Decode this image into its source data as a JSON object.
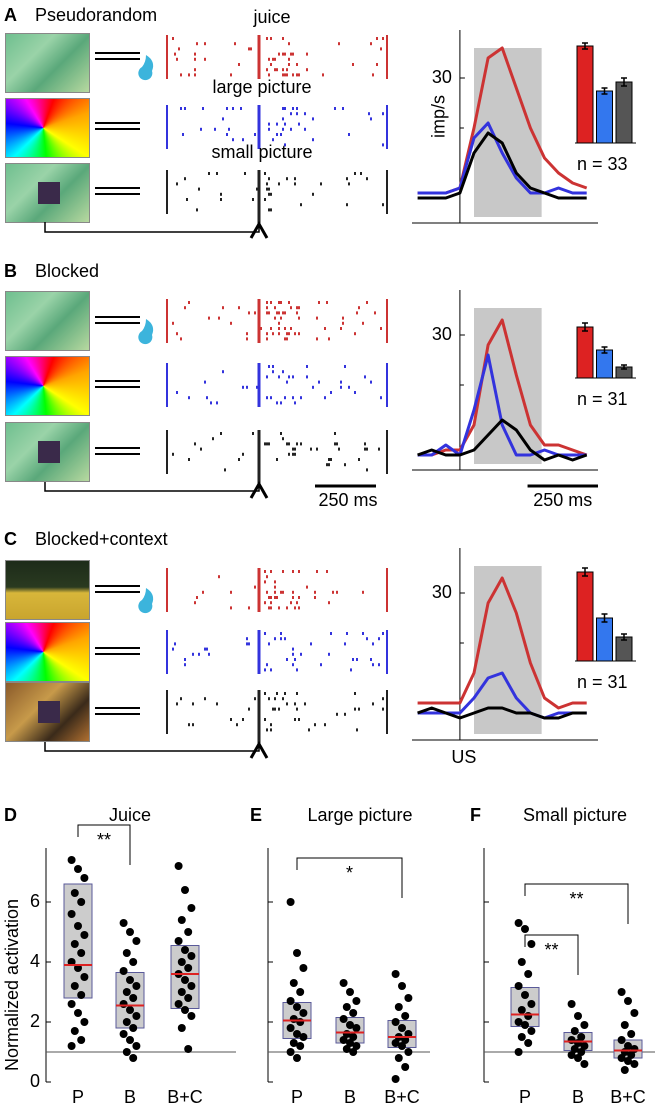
{
  "panels": [
    {
      "label": "A",
      "title": "Pseudorandom"
    },
    {
      "label": "B",
      "title": "Blocked"
    },
    {
      "label": "C",
      "title": "Blocked+context"
    }
  ],
  "raster_labels": [
    "juice",
    "large picture",
    "small picture"
  ],
  "raster_scale_bar": "250 ms",
  "chart_data": [
    {
      "type": "line",
      "x": [
        -150,
        -100,
        -50,
        0,
        50,
        100,
        150,
        200,
        250,
        300,
        350,
        400,
        450
      ],
      "xlim": [
        -170,
        490
      ],
      "ylim": [
        1,
        39.6
      ],
      "yticks": [
        30
      ],
      "minor_yticks": [
        20
      ],
      "ylabel": "imp/s",
      "shade": [
        50,
        290
      ],
      "series": [
        {
          "color": "#cc3333",
          "values": [
            7,
            7,
            7,
            8,
            20,
            34,
            36,
            28,
            20,
            14,
            11,
            9,
            8
          ]
        },
        {
          "color": "#3333dd",
          "values": [
            7,
            7,
            7,
            8,
            18,
            21,
            15,
            10,
            7,
            7,
            8,
            7,
            7
          ]
        },
        {
          "color": "#000000",
          "values": [
            6,
            6,
            6,
            7,
            15,
            19,
            17,
            11,
            8,
            7,
            6,
            6,
            6
          ]
        }
      ],
      "bars": {
        "values": [
          9.7,
          5.2,
          6.1
        ],
        "errors": [
          0.3,
          0.3,
          0.4
        ],
        "colors": [
          "#dd2222",
          "#3377ee",
          "#555555"
        ],
        "ylim": [
          0,
          10
        ]
      },
      "n_label": "n = 33"
    },
    {
      "type": "line",
      "x": [
        -150,
        -100,
        -50,
        0,
        50,
        100,
        150,
        200,
        250,
        300,
        350,
        400,
        450
      ],
      "xlim": [
        -170,
        490
      ],
      "ylim": [
        3,
        39
      ],
      "yticks": [
        30
      ],
      "minor_yticks": [
        20
      ],
      "shade": [
        50,
        290
      ],
      "scale_bar": {
        "label": "250 ms",
        "length": 250
      },
      "series": [
        {
          "color": "#cc3333",
          "values": [
            6,
            6,
            7,
            7,
            12,
            28,
            33,
            22,
            12,
            8,
            8,
            7,
            6
          ]
        },
        {
          "color": "#3333dd",
          "values": [
            6,
            6,
            8,
            6,
            15,
            26,
            12,
            6,
            6,
            7,
            6,
            6,
            6
          ]
        },
        {
          "color": "#000000",
          "values": [
            6,
            7,
            6,
            6,
            7,
            10,
            13,
            11,
            7,
            5,
            6,
            5,
            6
          ]
        }
      ],
      "bars": {
        "values": [
          5.1,
          2.8,
          1.1
        ],
        "errors": [
          0.4,
          0.3,
          0.2
        ],
        "colors": [
          "#dd2222",
          "#3377ee",
          "#555555"
        ],
        "ylim": [
          0,
          10
        ]
      },
      "n_label": "n = 31"
    },
    {
      "type": "line",
      "x": [
        -150,
        -100,
        -50,
        0,
        50,
        100,
        150,
        200,
        250,
        300,
        350,
        400,
        450
      ],
      "xlim": [
        -170,
        490
      ],
      "ylim": [
        0.6,
        39
      ],
      "yticks": [
        30
      ],
      "minor_yticks": [
        20
      ],
      "xlabel": "US",
      "shade": [
        50,
        290
      ],
      "series": [
        {
          "color": "#cc3333",
          "values": [
            8,
            8,
            8,
            8,
            14,
            28,
            33,
            26,
            16,
            9,
            7,
            8,
            8
          ]
        },
        {
          "color": "#3333dd",
          "values": [
            6,
            6,
            6,
            6,
            9,
            13,
            14,
            9,
            6,
            5,
            6,
            6,
            6
          ]
        },
        {
          "color": "#000000",
          "values": [
            6,
            7,
            6,
            5,
            6,
            7,
            7,
            6,
            6,
            5,
            5,
            6,
            6
          ]
        }
      ],
      "bars": {
        "values": [
          8.9,
          4.3,
          2.4
        ],
        "errors": [
          0.4,
          0.4,
          0.3
        ],
        "colors": [
          "#dd2222",
          "#3377ee",
          "#555555"
        ],
        "ylim": [
          0,
          10
        ]
      },
      "n_label": "n = 31"
    },
    {
      "type": "box",
      "panel": "D",
      "title": "Juice",
      "ylabel": "Normalized activation",
      "categories": [
        "P",
        "B",
        "B+C"
      ],
      "ylim": [
        0,
        7.8
      ],
      "yticks": [
        0,
        2,
        4,
        6
      ],
      "reference_line": 1,
      "boxes": [
        {
          "q1": 2.8,
          "median": 3.9,
          "q3": 6.6
        },
        {
          "q1": 1.8,
          "median": 2.55,
          "q3": 3.65
        },
        {
          "q1": 2.45,
          "median": 3.6,
          "q3": 4.55
        }
      ],
      "points": [
        [
          7.4,
          7.1,
          6.8,
          6.3,
          6.0,
          5.6,
          5.2,
          4.9,
          4.6,
          4.3,
          4.0,
          3.8,
          3.5,
          3.2,
          2.9,
          2.6,
          2.3,
          2.0,
          1.7,
          1.4,
          1.2
        ],
        [
          5.3,
          5.0,
          4.7,
          4.3,
          4.0,
          3.7,
          3.4,
          3.2,
          3.0,
          2.8,
          2.6,
          2.4,
          2.2,
          2.0,
          1.8,
          1.6,
          1.4,
          1.2,
          1.0,
          0.8
        ],
        [
          7.2,
          6.4,
          5.8,
          5.4,
          5.0,
          4.7,
          4.4,
          4.2,
          4.0,
          3.8,
          3.6,
          3.4,
          3.2,
          3.0,
          2.8,
          2.6,
          2.4,
          2.2,
          1.8,
          1.1
        ]
      ],
      "significance": [
        {
          "from": 0,
          "to": 1,
          "label": "**"
        }
      ]
    },
    {
      "type": "box",
      "panel": "E",
      "title": "Large picture",
      "categories": [
        "P",
        "B",
        "B+C"
      ],
      "ylim": [
        0,
        7.8
      ],
      "yticks": [
        0,
        2,
        4,
        6
      ],
      "reference_line": 1,
      "boxes": [
        {
          "q1": 1.45,
          "median": 2.05,
          "q3": 2.65
        },
        {
          "q1": 1.3,
          "median": 1.65,
          "q3": 2.15
        },
        {
          "q1": 1.15,
          "median": 1.5,
          "q3": 2.05
        }
      ],
      "points": [
        [
          6.0,
          4.3,
          3.8,
          3.3,
          3.0,
          2.7,
          2.5,
          2.3,
          2.1,
          2.0,
          1.8,
          1.6,
          1.5,
          1.3,
          1.2,
          1.0,
          0.8
        ],
        [
          3.3,
          3.0,
          2.7,
          2.5,
          2.3,
          2.1,
          1.9,
          1.8,
          1.6,
          1.5,
          1.4,
          1.3,
          1.2,
          1.1,
          1.0
        ],
        [
          3.6,
          3.2,
          2.8,
          2.5,
          2.2,
          2.0,
          1.8,
          1.6,
          1.5,
          1.4,
          1.3,
          1.2,
          1.0,
          0.8,
          0.5,
          0.1
        ]
      ],
      "significance": [
        {
          "from": 0,
          "to": 2,
          "label": "*"
        }
      ]
    },
    {
      "type": "box",
      "panel": "F",
      "title": "Small picture",
      "categories": [
        "P",
        "B",
        "B+C"
      ],
      "ylim": [
        0,
        7.8
      ],
      "yticks": [
        0,
        2,
        4,
        6
      ],
      "reference_line": 1,
      "boxes": [
        {
          "q1": 1.85,
          "median": 2.25,
          "q3": 3.15
        },
        {
          "q1": 1.05,
          "median": 1.35,
          "q3": 1.65
        },
        {
          "q1": 0.8,
          "median": 1.05,
          "q3": 1.4
        }
      ],
      "points": [
        [
          5.3,
          5.1,
          4.6,
          4.0,
          3.6,
          3.2,
          2.9,
          2.6,
          2.4,
          2.2,
          2.0,
          1.9,
          1.7,
          1.5,
          1.3,
          1.0
        ],
        [
          2.6,
          2.2,
          1.9,
          1.7,
          1.5,
          1.4,
          1.3,
          1.2,
          1.1,
          1.0,
          0.9,
          0.8,
          0.6
        ],
        [
          3.0,
          2.7,
          2.3,
          1.9,
          1.6,
          1.4,
          1.2,
          1.1,
          1.0,
          0.9,
          0.8,
          0.7,
          0.6,
          0.4
        ]
      ],
      "significance": [
        {
          "from": 0,
          "to": 2,
          "label": "**"
        },
        {
          "from": 0,
          "to": 1,
          "label": "**"
        }
      ]
    }
  ]
}
